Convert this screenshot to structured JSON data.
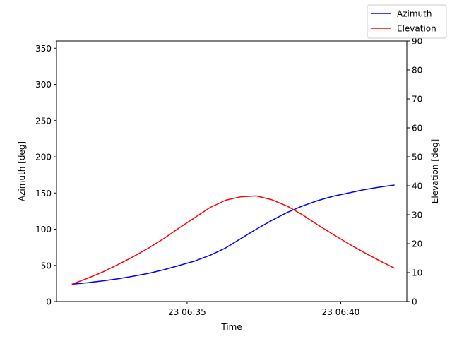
{
  "chart_data": {
    "type": "line",
    "title": "",
    "xlabel": "Time",
    "ylabel_left": "Azimuth [deg]",
    "ylabel_right": "Elevation [deg]",
    "x_ticks": [
      "23 06:35",
      "23 06:40"
    ],
    "x_tick_minutes": [
      35,
      40
    ],
    "x_range_minutes": [
      30.75,
      42.15
    ],
    "y_left_range": [
      0,
      360
    ],
    "y_left_ticks": [
      "0",
      "50",
      "100",
      "150",
      "200",
      "250",
      "300",
      "350"
    ],
    "y_right_range": [
      0,
      90
    ],
    "y_right_ticks": [
      "0",
      "10",
      "20",
      "30",
      "40",
      "50",
      "60",
      "70",
      "80",
      "90"
    ],
    "grid": false,
    "legend_position": "top-right",
    "x_minutes": [
      31.25,
      31.75,
      32.25,
      32.75,
      33.25,
      33.75,
      34.25,
      34.75,
      35.25,
      35.75,
      36.25,
      36.75,
      37.25,
      37.75,
      38.25,
      38.75,
      39.25,
      39.75,
      40.25,
      40.75,
      41.25,
      41.75
    ],
    "series": [
      {
        "name": "Azimuth",
        "axis": "left",
        "color": "#0000ff",
        "values": [
          24,
          26,
          28.5,
          31.5,
          35,
          39,
          44,
          50,
          56,
          64,
          74,
          87,
          100,
          112,
          123,
          132,
          139.5,
          145.5,
          150,
          154.5,
          158,
          161
        ]
      },
      {
        "name": "Elevation",
        "axis": "right",
        "color": "#ff0000",
        "values": [
          6,
          8,
          10.2,
          12.8,
          15.5,
          18.5,
          21.8,
          25.5,
          29,
          32.5,
          35,
          36.2,
          36.5,
          35.2,
          33,
          30,
          26.5,
          23.2,
          20,
          17,
          14.2,
          11.5
        ]
      }
    ]
  }
}
